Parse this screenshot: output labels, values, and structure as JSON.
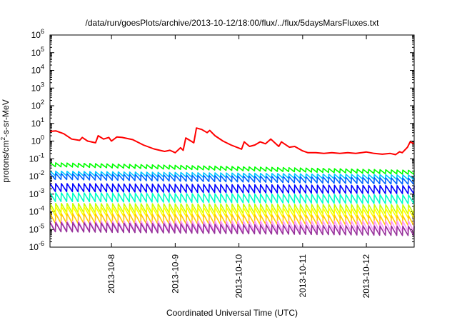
{
  "chart_data": {
    "type": "line",
    "title": "/data/run/goesPlots/archive/2013-10-12/18:00/flux/../flux/5daysMarsFluxes.txt",
    "xlabel": "Coordinated Universal Time (UTC)",
    "ylabel": {
      "base": "protons/cm",
      "sup": "2",
      "rest": "-s-sr-MeV"
    },
    "y_scale": "log",
    "ylim_exponent": [
      -6,
      6
    ],
    "y_ticks": [
      -6,
      -5,
      -4,
      -3,
      -2,
      -1,
      0,
      1,
      2,
      3,
      4,
      5,
      6
    ],
    "xlim": [
      "2013-10-07T00:50",
      "2013-10-12T18:00"
    ],
    "x_ticks": [
      {
        "at": "2013-10-08",
        "label": "2013-10-8"
      },
      {
        "at": "2013-10-09",
        "label": "2013-10-9"
      },
      {
        "at": "2013-10-10",
        "label": "2013-10-10"
      },
      {
        "at": "2013-10-11",
        "label": "2013-10-11"
      },
      {
        "at": "2013-10-12",
        "label": "2013-10-12"
      }
    ],
    "grid": false,
    "series": [
      {
        "color": "#ff0000",
        "values": [
          [
            "2013-10-07T00:50",
            3.5
          ],
          [
            "2013-10-07T03:00",
            3.8
          ],
          [
            "2013-10-07T06:00",
            2.6
          ],
          [
            "2013-10-07T09:00",
            1.3
          ],
          [
            "2013-10-07T12:00",
            1.1
          ],
          [
            "2013-10-07T13:00",
            1.6
          ],
          [
            "2013-10-07T15:00",
            1.0
          ],
          [
            "2013-10-07T18:00",
            0.8
          ],
          [
            "2013-10-07T19:00",
            2.0
          ],
          [
            "2013-10-07T21:00",
            1.3
          ],
          [
            "2013-10-07T23:00",
            1.6
          ],
          [
            "2013-10-08T00:00",
            1.0
          ],
          [
            "2013-10-08T02:00",
            1.7
          ],
          [
            "2013-10-08T04:00",
            1.6
          ],
          [
            "2013-10-08T08:00",
            1.2
          ],
          [
            "2013-10-08T12:00",
            0.6
          ],
          [
            "2013-10-08T16:00",
            0.36
          ],
          [
            "2013-10-08T20:00",
            0.26
          ],
          [
            "2013-10-08T22:00",
            0.3
          ],
          [
            "2013-10-09T00:00",
            0.22
          ],
          [
            "2013-10-09T02:00",
            0.42
          ],
          [
            "2013-10-09T03:00",
            0.3
          ],
          [
            "2013-10-09T04:00",
            1.5
          ],
          [
            "2013-10-09T07:00",
            0.8
          ],
          [
            "2013-10-09T08:00",
            5.5
          ],
          [
            "2013-10-09T10:00",
            4.5
          ],
          [
            "2013-10-09T12:00",
            3.0
          ],
          [
            "2013-10-09T13:00",
            4.0
          ],
          [
            "2013-10-09T15:00",
            2.0
          ],
          [
            "2013-10-09T18:00",
            1.0
          ],
          [
            "2013-10-09T21:00",
            0.6
          ],
          [
            "2013-10-10T01:00",
            0.35
          ],
          [
            "2013-10-10T02:00",
            0.9
          ],
          [
            "2013-10-10T04:00",
            0.5
          ],
          [
            "2013-10-10T06:00",
            0.6
          ],
          [
            "2013-10-10T08:00",
            0.9
          ],
          [
            "2013-10-10T10:00",
            0.7
          ],
          [
            "2013-10-10T12:00",
            1.3
          ],
          [
            "2013-10-10T15:00",
            0.5
          ],
          [
            "2013-10-10T16:00",
            0.9
          ],
          [
            "2013-10-10T19:00",
            0.45
          ],
          [
            "2013-10-10T21:00",
            0.5
          ],
          [
            "2013-10-11T00:00",
            0.28
          ],
          [
            "2013-10-11T02:00",
            0.22
          ],
          [
            "2013-10-11T05:00",
            0.22
          ],
          [
            "2013-10-11T08:00",
            0.2
          ],
          [
            "2013-10-11T11:00",
            0.22
          ],
          [
            "2013-10-11T14:00",
            0.2
          ],
          [
            "2013-10-11T17:00",
            0.22
          ],
          [
            "2013-10-11T20:00",
            0.2
          ],
          [
            "2013-10-12T00:00",
            0.24
          ],
          [
            "2013-10-12T03:00",
            0.2
          ],
          [
            "2013-10-12T06:00",
            0.18
          ],
          [
            "2013-10-12T09:00",
            0.2
          ],
          [
            "2013-10-12T11:00",
            0.17
          ],
          [
            "2013-10-12T12:30",
            0.25
          ],
          [
            "2013-10-12T13:30",
            0.22
          ],
          [
            "2013-10-12T15:30",
            0.45
          ],
          [
            "2013-10-12T16:30",
            0.9
          ],
          [
            "2013-10-12T18:00",
            0.7
          ]
        ]
      },
      {
        "color": "#00ff00",
        "pattern": "sawtooth",
        "start": 0.06,
        "end": 0.022,
        "depth": 0.6,
        "teeth": 64
      },
      {
        "color": "#00c8ff",
        "pattern": "sawtooth",
        "start": 0.02,
        "end": 0.012,
        "depth": 0.55,
        "teeth": 64
      },
      {
        "color": "#0064ff",
        "pattern": "sawtooth",
        "start": 0.015,
        "end": 0.008,
        "depth": 0.45,
        "teeth": 64
      },
      {
        "color": "#0000ff",
        "pattern": "sawtooth",
        "start": 0.004,
        "end": 0.003,
        "depth": 0.35,
        "teeth": 64
      },
      {
        "color": "#00ffc8",
        "pattern": "sawtooth",
        "start": 0.0012,
        "end": 0.0009,
        "depth": 0.32,
        "teeth": 64
      },
      {
        "color": "#c8ff00",
        "pattern": "sawtooth",
        "start": 0.0003,
        "end": 0.00025,
        "depth": 0.3,
        "teeth": 64
      },
      {
        "color": "#ffff00",
        "pattern": "sawtooth",
        "start": 0.0002,
        "end": 0.00015,
        "depth": 0.3,
        "teeth": 64
      },
      {
        "color": "#ffc800",
        "pattern": "sawtooth",
        "start": 8e-05,
        "end": 6e-05,
        "depth": 0.28,
        "teeth": 64
      },
      {
        "color": "#ff96ff",
        "pattern": "sawtooth",
        "start": 3e-05,
        "end": 3e-05,
        "depth": 0.25,
        "teeth": 64
      },
      {
        "color": "#96329a",
        "pattern": "sawtooth",
        "start": 2.5e-05,
        "end": 1.5e-05,
        "depth": 0.3,
        "teeth": 64
      }
    ]
  }
}
